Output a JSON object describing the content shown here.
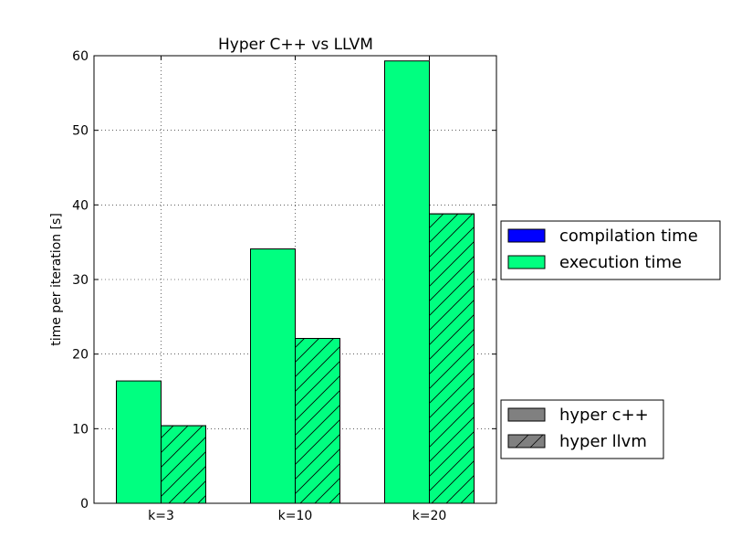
{
  "chart_data": {
    "type": "bar",
    "title": "Hyper C++ vs LLVM",
    "xlabel": "",
    "ylabel": "time per iteration [s]",
    "ylim": [
      0,
      60
    ],
    "yticks": [
      0,
      10,
      20,
      30,
      40,
      50,
      60
    ],
    "grid": true,
    "stacked": true,
    "categories": [
      "k=3",
      "k=10",
      "k=20"
    ],
    "series": [
      {
        "name": "hyper c++",
        "hatch": "none",
        "compilation_time": [
          0.0,
          0.0,
          0.0
        ],
        "execution_time": [
          16.4,
          34.1,
          59.3
        ]
      },
      {
        "name": "hyper llvm",
        "hatch": "diagonal",
        "compilation_time": [
          0.0,
          0.0,
          0.0
        ],
        "execution_time": [
          10.4,
          22.1,
          38.8
        ]
      }
    ],
    "legends": [
      {
        "placement": "right-middle",
        "entries": [
          {
            "label": "compilation time",
            "color": "#0000ff",
            "hatch": "none"
          },
          {
            "label": "execution time",
            "color": "#00ff80",
            "hatch": "none"
          }
        ]
      },
      {
        "placement": "right-bottom",
        "entries": [
          {
            "label": "hyper c++",
            "color": "#808080",
            "hatch": "none"
          },
          {
            "label": "hyper llvm",
            "color": "#808080",
            "hatch": "diagonal"
          }
        ]
      }
    ]
  }
}
